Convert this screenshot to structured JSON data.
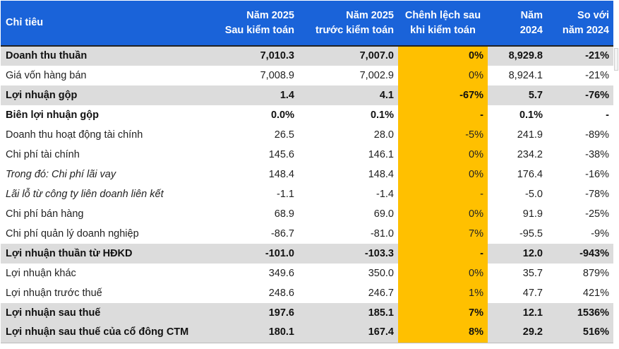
{
  "table": {
    "headers": [
      {
        "lines": [
          "Chỉ tiêu"
        ]
      },
      {
        "lines": [
          "Năm 2025",
          "Sau kiểm toán"
        ]
      },
      {
        "lines": [
          "Năm 2025",
          "trước kiểm toán"
        ]
      },
      {
        "lines": [
          "Chênh lệch sau",
          "khi kiểm toán"
        ]
      },
      {
        "lines": [
          "Năm",
          "2024"
        ]
      },
      {
        "lines": [
          "So với",
          "năm 2024"
        ]
      }
    ],
    "rows": [
      {
        "cells": [
          "Doanh thu thuần",
          "7,010.3",
          "7,007.0",
          "0%",
          "8,929.8",
          "-21%"
        ]
      },
      {
        "cells": [
          "Giá vốn hàng bán",
          "7,008.9",
          "7,002.9",
          "0%",
          "8,924.1",
          "-21%"
        ]
      },
      {
        "cells": [
          "Lợi nhuận gộp",
          "1.4",
          "4.1",
          "-67%",
          "5.7",
          "-76%"
        ]
      },
      {
        "cells": [
          "Biên lợi nhuận gộp",
          "0.0%",
          "0.1%",
          "-",
          "0.1%",
          "-"
        ]
      },
      {
        "cells": [
          "Doanh thu hoạt động tài chính",
          "26.5",
          "28.0",
          "-5%",
          "241.9",
          "-89%"
        ]
      },
      {
        "cells": [
          "Chi phí tài chính",
          "145.6",
          "146.1",
          "0%",
          "234.2",
          "-38%"
        ]
      },
      {
        "cells": [
          "Trong đó: Chi phí lãi vay",
          "148.4",
          "148.4",
          "0%",
          "176.4",
          "-16%"
        ]
      },
      {
        "cells": [
          "Lãi lỗ từ công ty liên doanh liên kết",
          "-1.1",
          "-1.4",
          "-",
          "-5.0",
          "-78%"
        ]
      },
      {
        "cells": [
          "Chi phí bán hàng",
          "68.9",
          "69.0",
          "0%",
          "91.9",
          "-25%"
        ]
      },
      {
        "cells": [
          "Chi phí quản lý doanh nghiệp",
          "-86.7",
          "-81.0",
          "7%",
          "-95.5",
          "-9%"
        ]
      },
      {
        "cells": [
          "Lợi nhuận thuần từ HĐKD",
          "-101.0",
          "-103.3",
          "-",
          "12.0",
          "-943%"
        ]
      },
      {
        "cells": [
          "Lợi nhuận khác",
          "349.6",
          "350.0",
          "0%",
          "35.7",
          "879%"
        ]
      },
      {
        "cells": [
          "Lợi nhuận trước thuế",
          "248.6",
          "246.7",
          "1%",
          "47.7",
          "421%"
        ]
      },
      {
        "cells": [
          "Lợi nhuận sau thuế",
          "197.6",
          "185.1",
          "7%",
          "12.1",
          "1536%"
        ]
      },
      {
        "cells": [
          "Lợi nhuận sau thuế của cổ đông CTM",
          "180.1",
          "167.4",
          "8%",
          "29.2",
          "516%"
        ]
      }
    ]
  },
  "colors": {
    "header_bg": "#1a63d9",
    "highlight_column": "#ffc000",
    "shaded_row": "#dcdcdc"
  }
}
